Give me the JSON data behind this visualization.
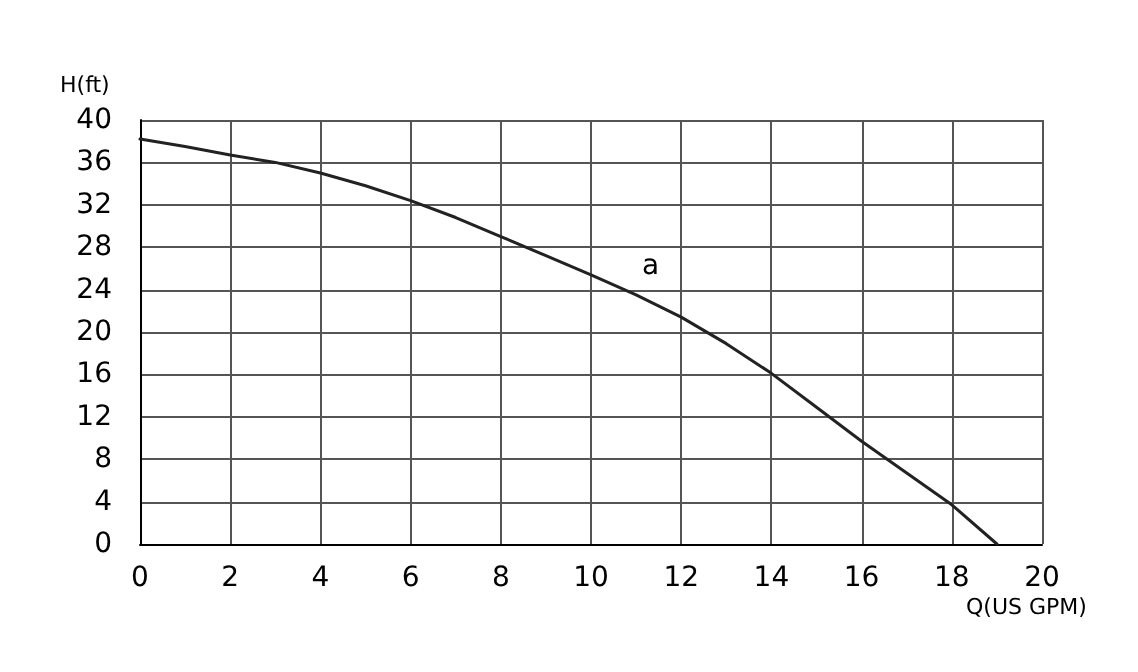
{
  "chart_data": {
    "type": "line",
    "xlabel": "Q(US GPM)",
    "ylabel": "H(ft)",
    "x": [
      0,
      1,
      2,
      3,
      4,
      5,
      6,
      7,
      8,
      9,
      10,
      11,
      12,
      13,
      14,
      15,
      16,
      17,
      18,
      19
    ],
    "series": [
      {
        "color": "#222222",
        "values": [
          38.2,
          37.5,
          36.7,
          36,
          35,
          33.8,
          32.4,
          30.8,
          29,
          27.2,
          25.4,
          23.5,
          21.4,
          18.9,
          16.1,
          12.9,
          9.7,
          6.7,
          3.7,
          0
        ]
      }
    ],
    "annotations": [
      "a"
    ],
    "xlim": [
      0,
      20
    ],
    "xticks": [
      0,
      2,
      4,
      6,
      8,
      10,
      12,
      14,
      16,
      18,
      20
    ],
    "ylim": [
      0,
      40
    ],
    "yticks": [
      0,
      4,
      8,
      12,
      16,
      20,
      24,
      28,
      32,
      36,
      40
    ],
    "grid": true,
    "marker": "none",
    "line_style": "solid"
  }
}
